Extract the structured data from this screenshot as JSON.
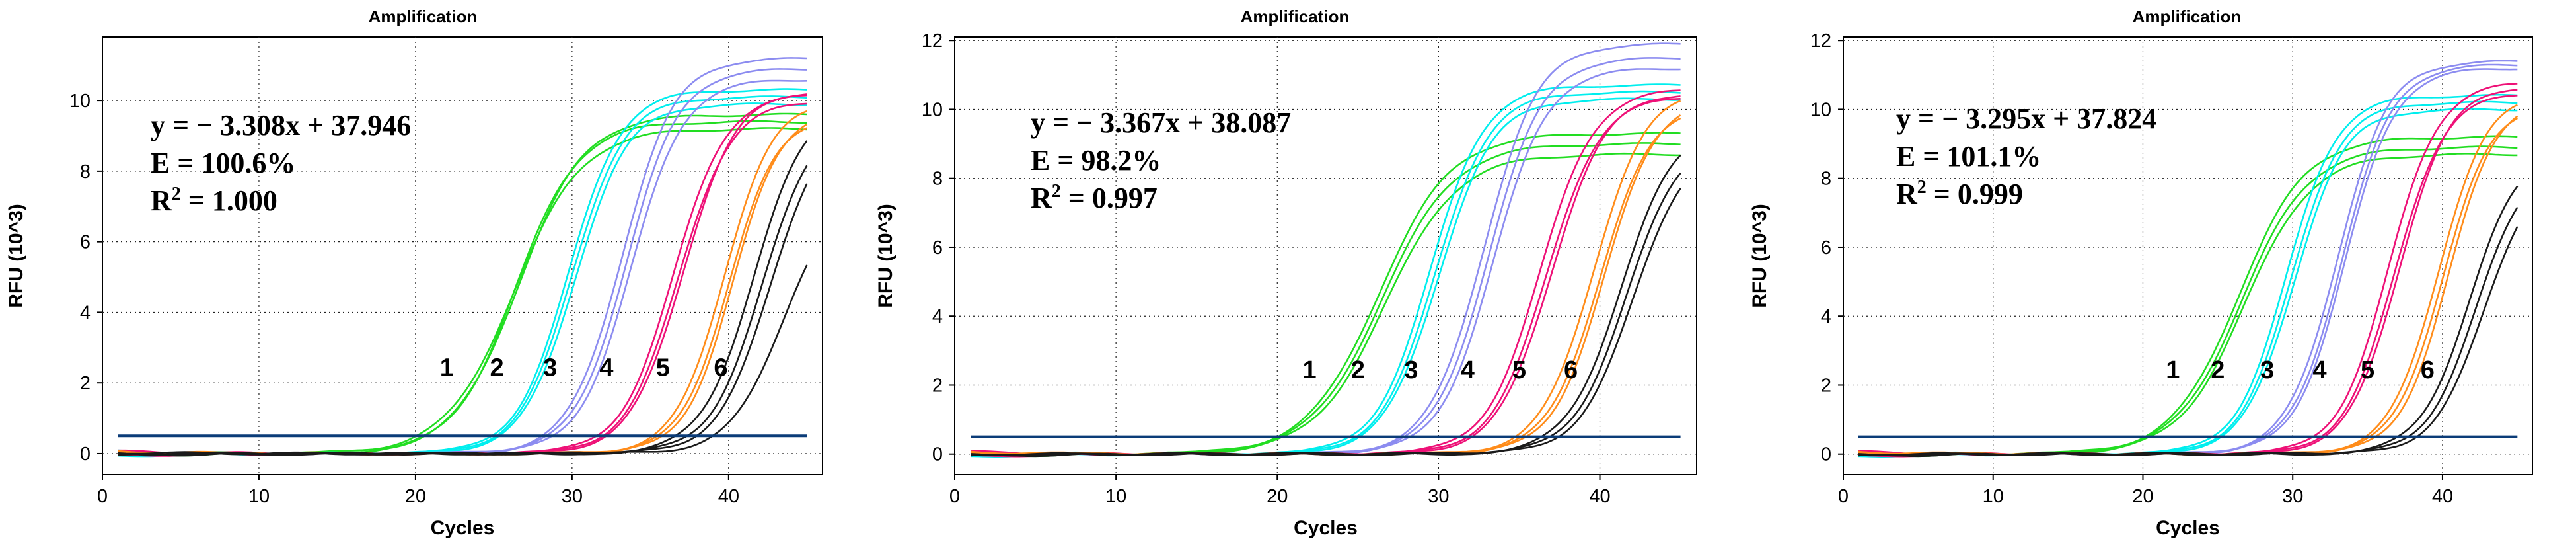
{
  "chart_data": [
    {
      "type": "line",
      "title": "Amplification",
      "xlabel": "Cycles",
      "ylabel": "RFU (10^3)",
      "xlim": [
        0,
        46
      ],
      "ylim": [
        -0.6,
        11.8
      ],
      "xticks": [
        0,
        10,
        20,
        30,
        40
      ],
      "yticks": [
        0,
        2,
        4,
        6,
        8,
        10
      ],
      "grid": true,
      "threshold": 0.5,
      "equation": [
        "y = − 3.308x + 37.946",
        "E = 100.6%",
        "R",
        "2",
        " = 1.000"
      ],
      "dilution_labels": [
        {
          "text": "1",
          "cycle": 22.0,
          "rfu": 2.2
        },
        {
          "text": "2",
          "cycle": 25.2,
          "rfu": 2.2
        },
        {
          "text": "3",
          "cycle": 28.6,
          "rfu": 2.2
        },
        {
          "text": "4",
          "cycle": 32.2,
          "rfu": 2.2
        },
        {
          "text": "5",
          "cycle": 35.8,
          "rfu": 2.2
        },
        {
          "text": "6",
          "cycle": 39.5,
          "rfu": 2.2
        }
      ],
      "series": [
        {
          "name": "1",
          "color": "#22dd22",
          "ct": [
            22.6,
            22.3,
            22.4
          ],
          "plateau": [
            9.6,
            9.2,
            9.4
          ],
          "slope": [
            0.48,
            0.46,
            0.5
          ]
        },
        {
          "name": "2",
          "color": "#00eeee",
          "ct": [
            25.8,
            26.0,
            26.2
          ],
          "plateau": [
            10.3,
            10.1,
            9.9
          ],
          "slope": [
            0.6,
            0.6,
            0.6
          ]
        },
        {
          "name": "3",
          "color": "#8c8cf0",
          "ct": [
            29.2,
            29.5,
            29.8
          ],
          "plateau": [
            11.2,
            10.9,
            10.6
          ],
          "slope": [
            0.6,
            0.6,
            0.6
          ]
        },
        {
          "name": "4",
          "color": "#ee1177",
          "ct": [
            32.5,
            32.8,
            33.1
          ],
          "plateau": [
            10.2,
            10.0,
            10.3
          ],
          "slope": [
            0.6,
            0.6,
            0.6
          ]
        },
        {
          "name": "5",
          "color": "#ff8c1a",
          "ct": [
            35.7,
            36.0,
            36.3
          ],
          "plateau": [
            10.0,
            9.6,
            9.8
          ],
          "slope": [
            0.65,
            0.65,
            0.65
          ]
        },
        {
          "name": "6",
          "color": "#1a1a1a",
          "ct": [
            37.6,
            38.2,
            38.7,
            39.4
          ],
          "plateau": [
            10.0,
            9.7,
            9.6,
            7.4
          ],
          "slope": [
            0.6,
            0.6,
            0.6,
            0.6
          ]
        }
      ]
    },
    {
      "type": "line",
      "title": "Amplification",
      "xlabel": "Cycles",
      "ylabel": "RFU (10^3)",
      "xlim": [
        0,
        46
      ],
      "ylim": [
        -0.6,
        12.1
      ],
      "xticks": [
        0,
        10,
        20,
        30,
        40
      ],
      "yticks": [
        0,
        2,
        4,
        6,
        8,
        10,
        12
      ],
      "grid": true,
      "threshold": 0.5,
      "equation": [
        "y = − 3.367x + 38.087",
        "E = 98.2%",
        "R",
        "2",
        " = 0.997"
      ],
      "dilution_labels": [
        {
          "text": "1",
          "cycle": 22.0,
          "rfu": 2.2
        },
        {
          "text": "2",
          "cycle": 25.0,
          "rfu": 2.2
        },
        {
          "text": "3",
          "cycle": 28.3,
          "rfu": 2.2
        },
        {
          "text": "4",
          "cycle": 31.8,
          "rfu": 2.2
        },
        {
          "text": "5",
          "cycle": 35.0,
          "rfu": 2.2
        },
        {
          "text": "6",
          "cycle": 38.2,
          "rfu": 2.2
        }
      ],
      "series": [
        {
          "name": "1",
          "color": "#22dd22",
          "ct": [
            22.3,
            22.5,
            22.7
          ],
          "plateau": [
            9.3,
            9.0,
            8.7
          ],
          "slope": [
            0.45,
            0.45,
            0.45
          ]
        },
        {
          "name": "2",
          "color": "#00eeee",
          "ct": [
            25.5,
            25.8,
            26.0
          ],
          "plateau": [
            10.7,
            10.5,
            10.3
          ],
          "slope": [
            0.6,
            0.6,
            0.6
          ]
        },
        {
          "name": "3",
          "color": "#8c8cf0",
          "ct": [
            28.8,
            29.1,
            29.4
          ],
          "plateau": [
            11.9,
            11.5,
            11.2
          ],
          "slope": [
            0.6,
            0.6,
            0.6
          ]
        },
        {
          "name": "4",
          "color": "#ee1177",
          "ct": [
            32.3,
            32.7,
            33.0
          ],
          "plateau": [
            10.6,
            10.4,
            10.5
          ],
          "slope": [
            0.6,
            0.6,
            0.6
          ]
        },
        {
          "name": "5",
          "color": "#ff8c1a",
          "ct": [
            35.6,
            36.0,
            36.3
          ],
          "plateau": [
            10.6,
            10.2,
            10.4
          ],
          "slope": [
            0.62,
            0.62,
            0.62
          ]
        },
        {
          "name": "6",
          "color": "#1a1a1a",
          "ct": [
            37.3,
            37.7,
            38.1
          ],
          "plateau": [
            9.6,
            9.3,
            9.1
          ],
          "slope": [
            0.6,
            0.6,
            0.6
          ]
        }
      ]
    },
    {
      "type": "line",
      "title": "Amplification",
      "xlabel": "Cycles",
      "ylabel": "RFU (10^3)",
      "xlim": [
        0,
        46
      ],
      "ylim": [
        -0.6,
        12.1
      ],
      "xticks": [
        0,
        10,
        20,
        30,
        40
      ],
      "yticks": [
        0,
        2,
        4,
        6,
        8,
        10,
        12
      ],
      "grid": true,
      "threshold": 0.5,
      "equation": [
        "y = − 3.295x + 37.824",
        "E = 101.1%",
        "R",
        "2",
        " = 0.999"
      ],
      "dilution_labels": [
        {
          "text": "1",
          "cycle": 22.0,
          "rfu": 2.2
        },
        {
          "text": "2",
          "cycle": 25.0,
          "rfu": 2.2
        },
        {
          "text": "3",
          "cycle": 28.3,
          "rfu": 2.2
        },
        {
          "text": "4",
          "cycle": 31.8,
          "rfu": 2.2
        },
        {
          "text": "5",
          "cycle": 35.0,
          "rfu": 2.2
        },
        {
          "text": "6",
          "cycle": 39.0,
          "rfu": 2.2
        }
      ],
      "series": [
        {
          "name": "1",
          "color": "#22dd22",
          "ct": [
            22.4,
            22.6,
            22.8
          ],
          "plateau": [
            9.2,
            8.9,
            8.7
          ],
          "slope": [
            0.45,
            0.45,
            0.45
          ]
        },
        {
          "name": "2",
          "color": "#00eeee",
          "ct": [
            25.6,
            25.9,
            26.1
          ],
          "plateau": [
            10.4,
            10.2,
            10.0
          ],
          "slope": [
            0.6,
            0.6,
            0.6
          ]
        },
        {
          "name": "3",
          "color": "#8c8cf0",
          "ct": [
            29.0,
            29.3,
            29.5
          ],
          "plateau": [
            11.4,
            11.3,
            11.2
          ],
          "slope": [
            0.6,
            0.6,
            0.6
          ]
        },
        {
          "name": "4",
          "color": "#ee1177",
          "ct": [
            32.4,
            32.8,
            33.1
          ],
          "plateau": [
            10.8,
            10.5,
            10.7
          ],
          "slope": [
            0.6,
            0.6,
            0.6
          ]
        },
        {
          "name": "5",
          "color": "#ff8c1a",
          "ct": [
            35.7,
            36.0,
            36.4
          ],
          "plateau": [
            10.5,
            10.2,
            10.4
          ],
          "slope": [
            0.62,
            0.62,
            0.62
          ]
        },
        {
          "name": "6",
          "color": "#1a1a1a",
          "ct": [
            37.8,
            38.3,
            38.8
          ],
          "plateau": [
            8.9,
            8.6,
            8.4
          ],
          "slope": [
            0.6,
            0.6,
            0.6
          ]
        }
      ]
    }
  ]
}
